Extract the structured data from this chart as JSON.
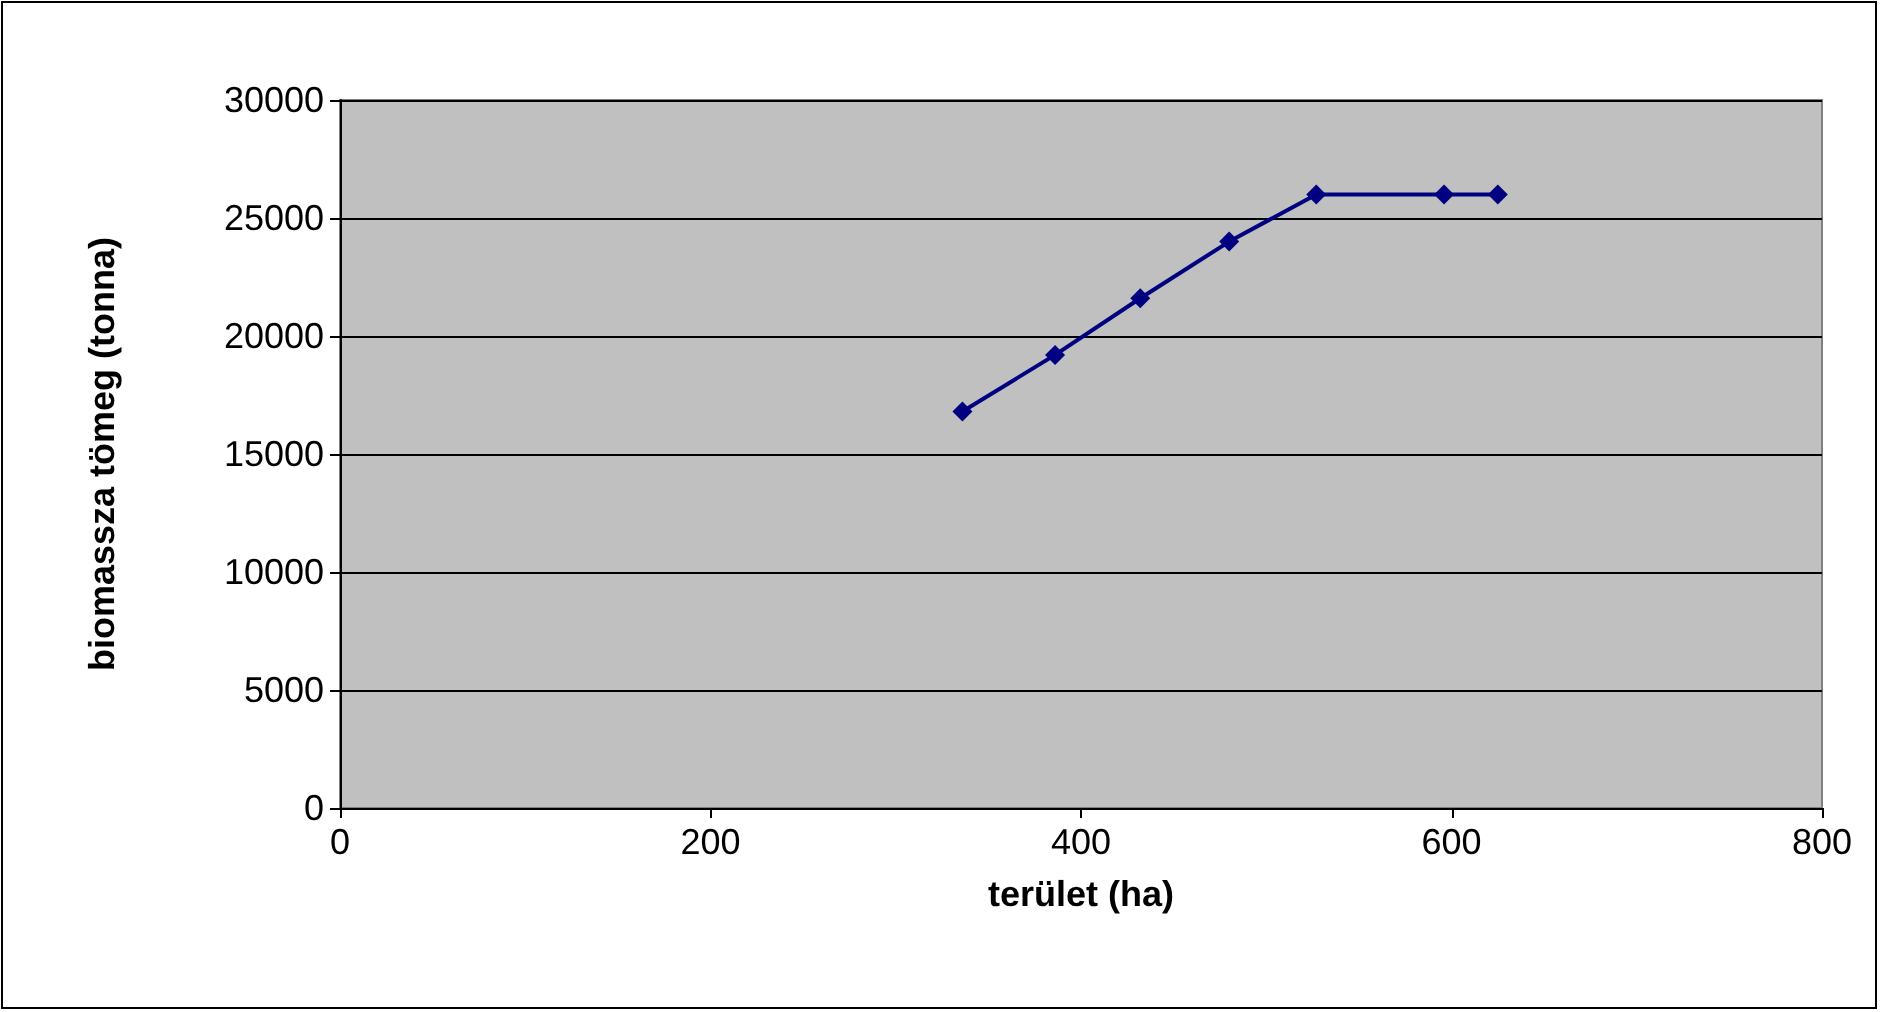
{
  "chart_data": {
    "type": "line",
    "xlabel": "terület (ha)",
    "ylabel": "biomassza tömeg (tonna)",
    "x": [
      336,
      386,
      432,
      480,
      527,
      596,
      625
    ],
    "series": [
      {
        "color": "#000080",
        "values": [
          16800,
          19200,
          21600,
          24000,
          26000,
          26000,
          26000
        ]
      }
    ],
    "xlim": [
      0,
      800
    ],
    "xticks": [
      0,
      200,
      400,
      600,
      800
    ],
    "ylim": [
      0,
      30000
    ],
    "yticks": [
      0,
      5000,
      10000,
      15000,
      20000,
      25000,
      30000
    ],
    "grid": "y",
    "marker": "diamond",
    "line_style": "solid"
  }
}
